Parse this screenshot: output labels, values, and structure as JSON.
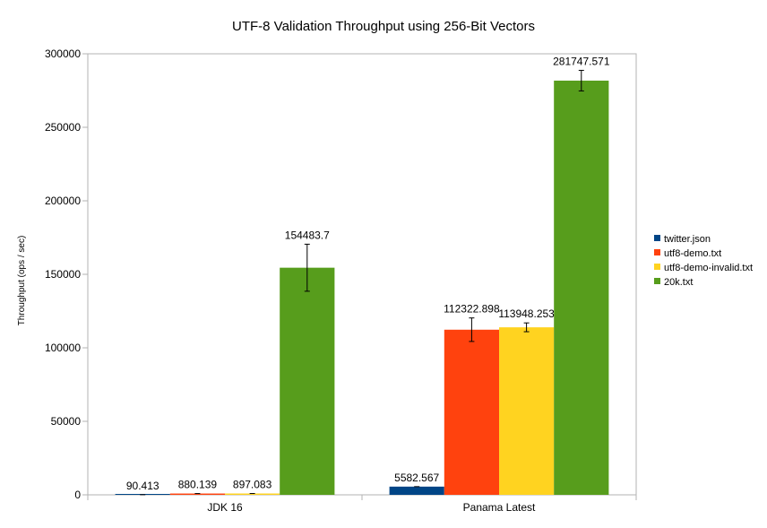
{
  "chart_data": {
    "type": "bar",
    "title": "UTF-8 Validation Throughput using 256-Bit Vectors",
    "xlabel": "",
    "ylabel": "Throughput (ops / sec)",
    "ylim": [
      0,
      300000
    ],
    "yticks": [
      0,
      50000,
      100000,
      150000,
      200000,
      250000,
      300000
    ],
    "grid": false,
    "legend_position": "right",
    "categories": [
      "JDK 16",
      "Panama Latest"
    ],
    "series": [
      {
        "name": "twitter.json",
        "color": "#004586",
        "values": [
          90.413,
          5582.567
        ],
        "labels": [
          "90.413",
          "5582.567"
        ],
        "errors": [
          0,
          0
        ]
      },
      {
        "name": "utf8-demo.txt",
        "color": "#ff420e",
        "values": [
          880.139,
          112322.898
        ],
        "labels": [
          "880.139",
          "112322.898"
        ],
        "errors": [
          0,
          8000
        ]
      },
      {
        "name": "utf8-demo-invalid.txt",
        "color": "#ffd320",
        "values": [
          897.083,
          113948.253
        ],
        "labels": [
          "897.083",
          "113948.253"
        ],
        "errors": [
          0,
          3000
        ]
      },
      {
        "name": "20k.txt",
        "color": "#579d1c",
        "values": [
          154483.7,
          281747.571
        ],
        "labels": [
          "154483.7",
          "281747.571"
        ],
        "errors": [
          16000,
          7000
        ]
      }
    ]
  }
}
